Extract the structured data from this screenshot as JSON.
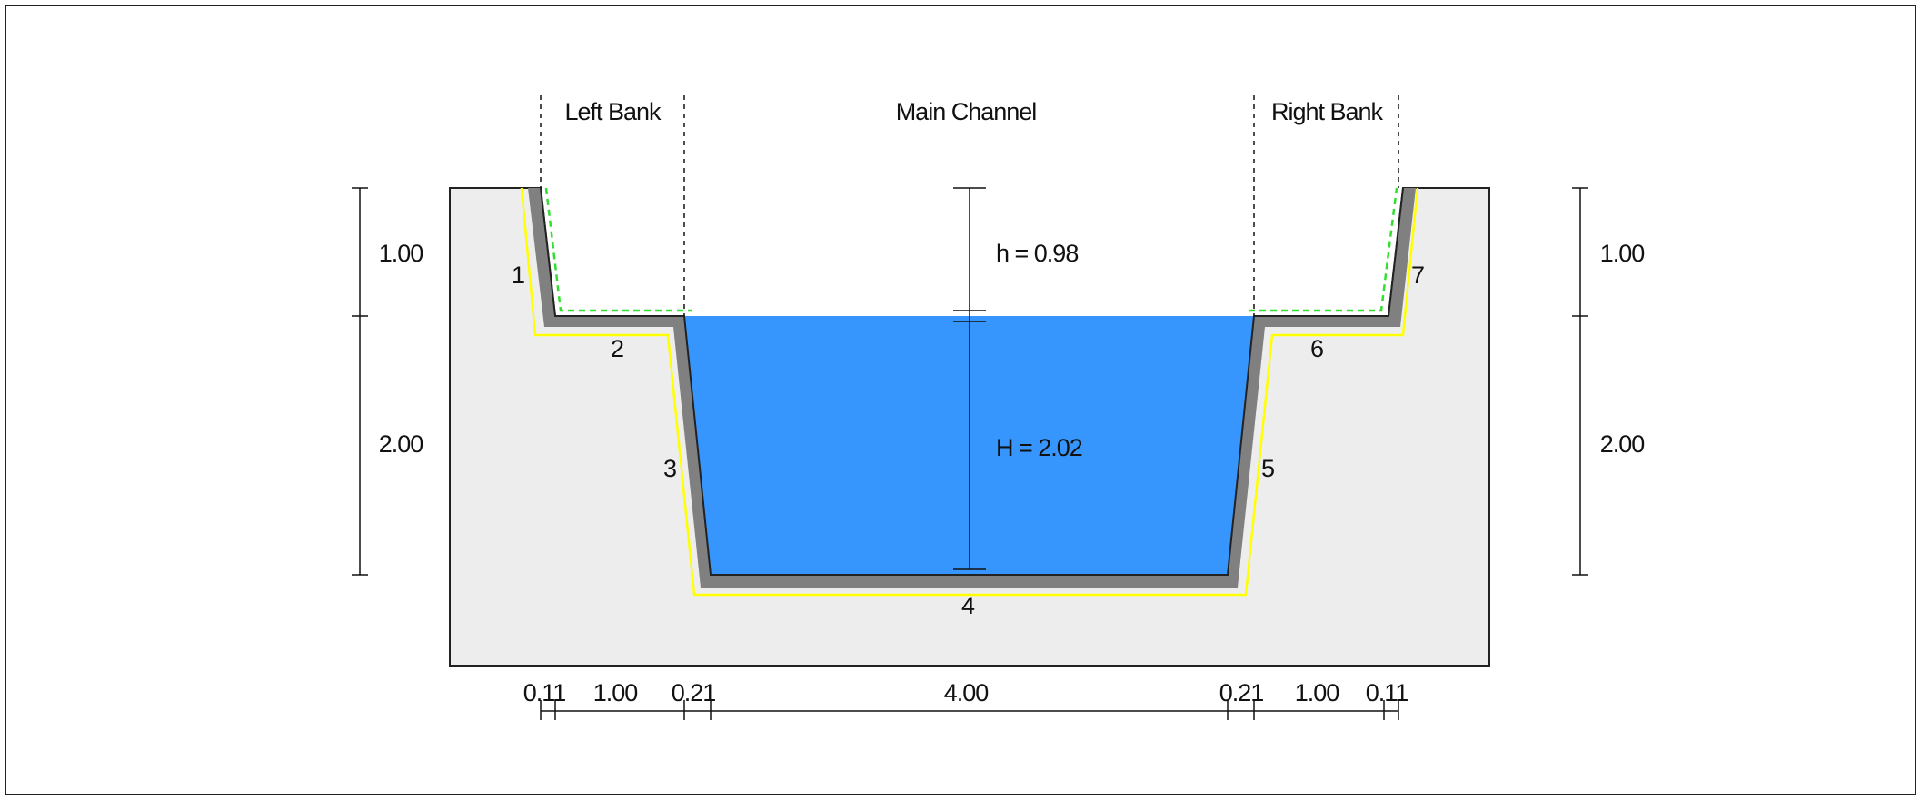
{
  "zones": {
    "left_bank": "Left Bank",
    "main_channel": "Main Channel",
    "right_bank": "Right Bank"
  },
  "depths": {
    "freeboard": "h = 0.98",
    "water": "H = 2.02"
  },
  "left_dims": {
    "upper": "1.00",
    "lower": "2.00"
  },
  "right_dims": {
    "upper": "1.00",
    "lower": "2.00"
  },
  "segments": [
    "1",
    "2",
    "3",
    "4",
    "5",
    "6",
    "7"
  ],
  "bottom_dims": [
    "0.11",
    "1.00",
    "0.21",
    "4.00",
    "0.21",
    "1.00",
    "0.11"
  ],
  "colors": {
    "water": "#3696fd",
    "soil": "#ededed",
    "lining": "#808080",
    "outer_line": "#ffff00",
    "bank_line": "#33dd33"
  }
}
